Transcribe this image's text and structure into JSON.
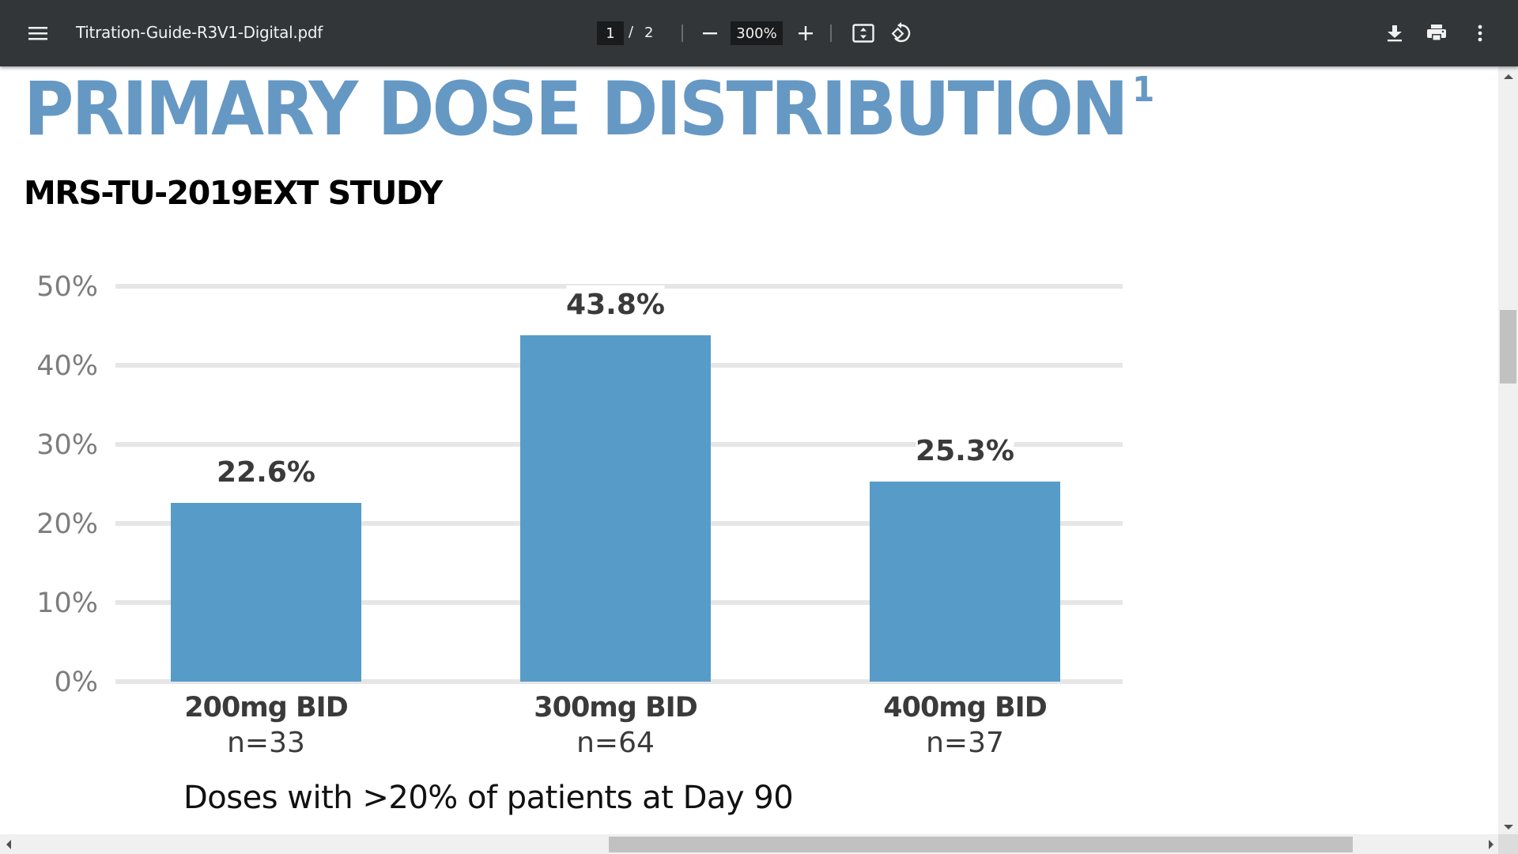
{
  "toolbar": {
    "filename": "Titration-Guide-R3V1-Digital.pdf",
    "current_page": "1",
    "page_separator": "/",
    "total_pages": "2",
    "zoom_level": "300%",
    "icons": {
      "menu": "hamburger-menu-icon",
      "zoom_out": "minus-icon",
      "zoom_in": "plus-icon",
      "fit": "fit-to-page-icon",
      "rotate": "rotate-counterclockwise-icon",
      "download": "download-icon",
      "print": "print-icon",
      "more": "more-vertical-icon"
    }
  },
  "document": {
    "title": "PRIMARY DOSE DISTRIBUTION",
    "title_superscript": "1",
    "subtitle": "MRS-TU-2019EXT STUDY",
    "footnote": "Doses with >20% of patients at Day 90",
    "title_color": "#6698c4",
    "bar_color": "#579cc8"
  },
  "chart_data": {
    "type": "bar",
    "title": "PRIMARY DOSE DISTRIBUTION",
    "subtitle": "MRS-TU-2019EXT STUDY",
    "categories": [
      "200mg BID",
      "300mg BID",
      "400mg BID"
    ],
    "category_sublabels": [
      "n=33",
      "n=64",
      "n=37"
    ],
    "values": [
      22.6,
      43.8,
      25.3
    ],
    "value_labels": [
      "22.6%",
      "43.8%",
      "25.3%"
    ],
    "xlabel": "",
    "ylabel": "",
    "ylim": [
      0,
      50
    ],
    "yticks": [
      0,
      10,
      20,
      30,
      40,
      50
    ],
    "ytick_labels": [
      "0%",
      "10%",
      "20%",
      "30%",
      "40%",
      "50%"
    ],
    "grid": true,
    "legend": "none",
    "caption": "Doses with >20% of patients at Day 90"
  }
}
